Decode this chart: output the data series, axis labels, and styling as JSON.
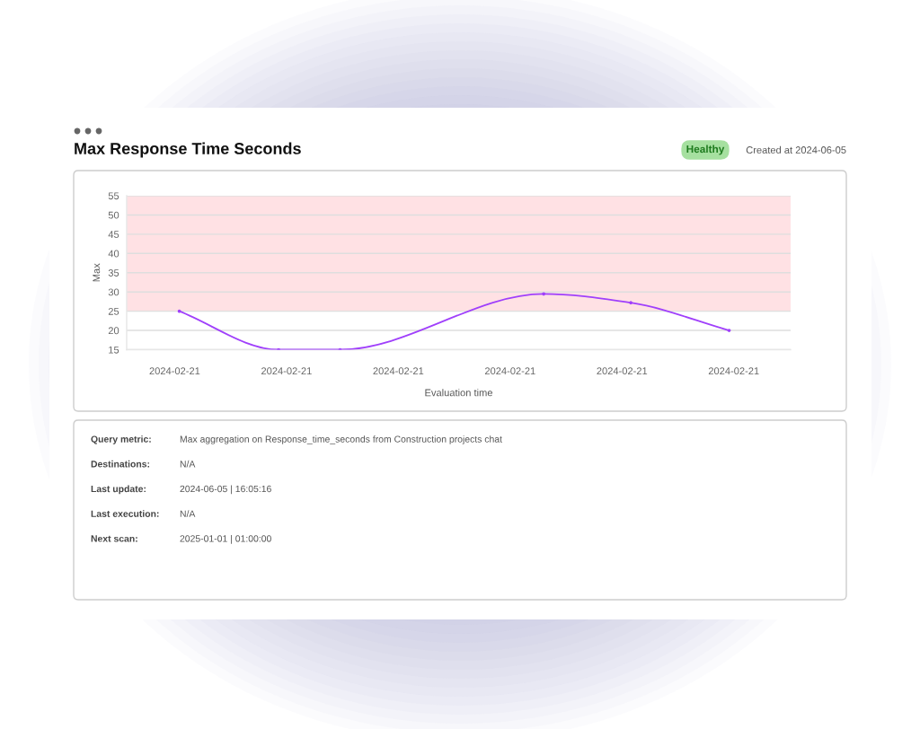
{
  "chart_data": {
    "type": "line",
    "title": "Max Response Time Seconds",
    "xlabel": "Evaluation time",
    "ylabel": "Max",
    "x": [
      "2024-02-21T02:10",
      "2024-02-21T05:43",
      "2024-02-21T07:55",
      "2024-02-21T15:12",
      "2024-02-21T18:19",
      "2024-02-21T21:50"
    ],
    "series": [
      {
        "color": "#a040fb",
        "values": [
          25,
          15,
          15,
          29.5,
          27.2,
          20
        ]
      }
    ],
    "xlim": [
      "2024-02-21T00:17",
      "2024-02-22T00:02"
    ],
    "xticks": [
      {
        "value": "2024-02-21T02:00",
        "label": "2024-02-21"
      },
      {
        "value": "2024-02-21T06:00",
        "label": "2024-02-21"
      },
      {
        "value": "2024-02-21T10:00",
        "label": "2024-02-21"
      },
      {
        "value": "2024-02-21T14:00",
        "label": "2024-02-21"
      },
      {
        "value": "2024-02-21T18:00",
        "label": "2024-02-21"
      },
      {
        "value": "2024-02-21T22:00",
        "label": "2024-02-21"
      }
    ],
    "ylim": [
      15,
      55
    ],
    "yticks": [
      15,
      20,
      25,
      30,
      35,
      40,
      45,
      50,
      55
    ],
    "bands": [
      {
        "axis": "y",
        "from": 25,
        "to": 55,
        "color": "#ffe1e4"
      }
    ],
    "grid": "y",
    "marker": "circle",
    "line_style": "solid",
    "annotations": [
      "Healthy",
      "Created at 2024-06-05",
      "Query metric:",
      "Max aggregation on Response_time_seconds from Construction projects chat",
      "Destinations:",
      "N/A",
      "Last update:",
      "2024-06-05 | 16:05:16",
      "Last execution:",
      "N/A",
      "Next scan:",
      "2025-01-01 | 01:00:00"
    ]
  }
}
